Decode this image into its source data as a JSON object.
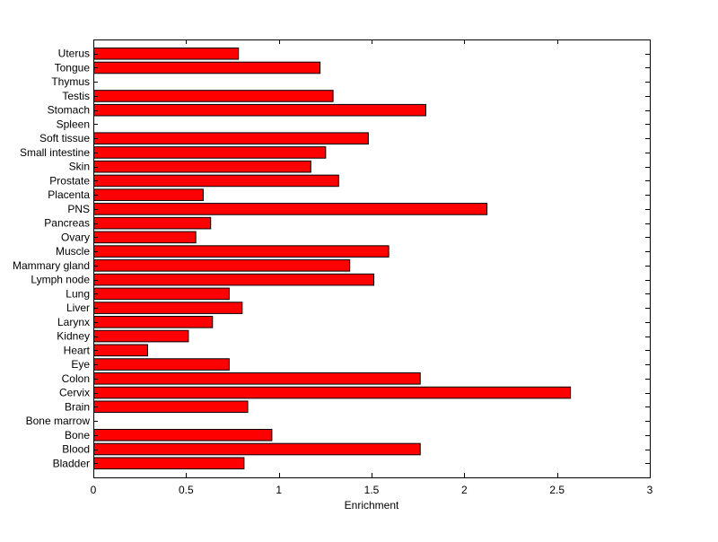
{
  "chart_data": {
    "type": "bar",
    "orientation": "horizontal",
    "xlabel": "Enrichment",
    "ylabel": "",
    "xlim": [
      0,
      3
    ],
    "xticks": [
      0,
      0.5,
      1,
      1.5,
      2,
      2.5,
      3
    ],
    "xtick_labels": [
      "0",
      "0.5",
      "1",
      "1.5",
      "2",
      "2.5",
      "3"
    ],
    "grid": false,
    "bar_color": "#ff0000",
    "edge_color": "#000000",
    "categories": [
      "Bladder",
      "Blood",
      "Bone",
      "Bone marrow",
      "Brain",
      "Cervix",
      "Colon",
      "Eye",
      "Heart",
      "Kidney",
      "Larynx",
      "Liver",
      "Lung",
      "Lymph node",
      "Mammary gland",
      "Muscle",
      "Ovary",
      "Pancreas",
      "PNS",
      "Placenta",
      "Prostate",
      "Skin",
      "Small intestine",
      "Soft tissue",
      "Spleen",
      "Stomach",
      "Testis",
      "Thymus",
      "Tongue",
      "Uterus"
    ],
    "values": [
      0.81,
      1.76,
      0.96,
      0,
      0.83,
      2.57,
      1.76,
      0.73,
      0.29,
      0.51,
      0.64,
      0.8,
      0.73,
      1.51,
      1.38,
      1.59,
      0.55,
      0.63,
      2.12,
      0.59,
      1.32,
      1.17,
      1.25,
      1.48,
      0,
      1.79,
      1.29,
      0,
      1.22,
      0.78
    ]
  }
}
